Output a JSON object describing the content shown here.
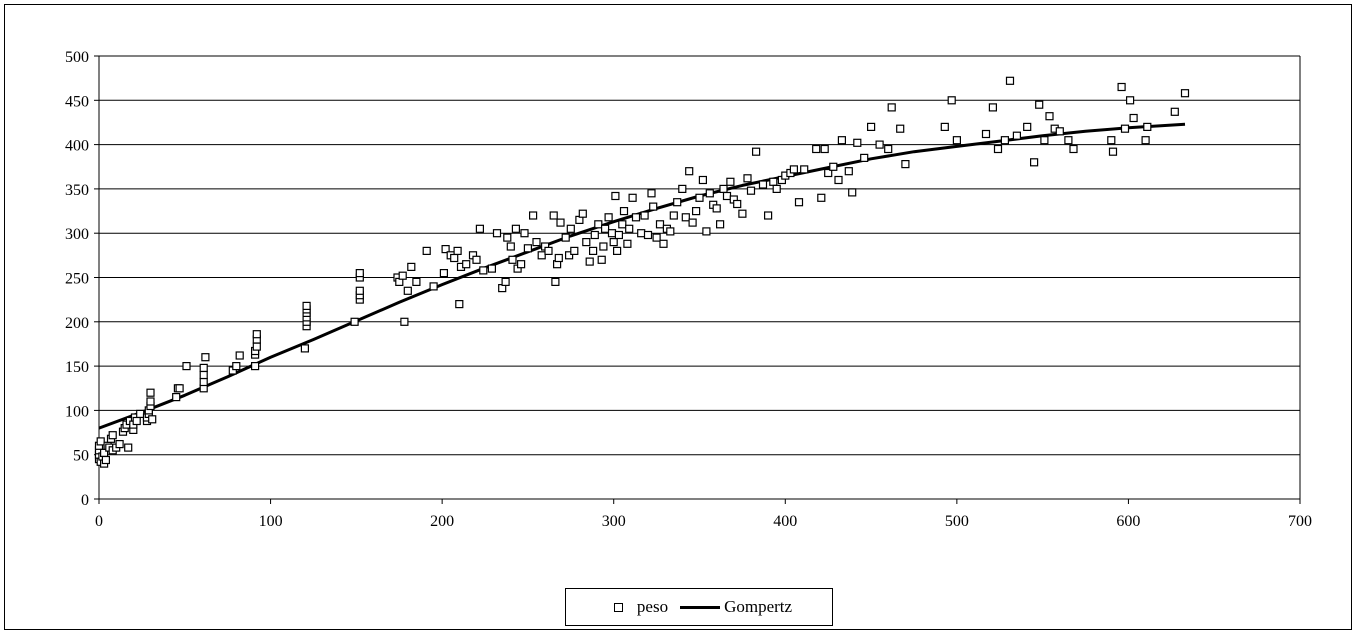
{
  "chart_data": {
    "type": "scatter",
    "title": "",
    "xlabel": "",
    "ylabel": "",
    "xlim": [
      0,
      700
    ],
    "ylim": [
      0,
      500
    ],
    "x_ticks": [
      0,
      100,
      200,
      300,
      400,
      500,
      600,
      700
    ],
    "y_ticks": [
      0,
      50,
      100,
      150,
      200,
      250,
      300,
      350,
      400,
      450,
      500
    ],
    "grid": "horizontal",
    "legend_position": "bottom",
    "series": [
      {
        "name": "peso",
        "marker": "open-square",
        "color": "#000000",
        "points": [
          [
            0,
            45
          ],
          [
            0,
            50
          ],
          [
            0,
            55
          ],
          [
            0,
            60
          ],
          [
            1,
            42
          ],
          [
            1,
            65
          ],
          [
            2,
            48
          ],
          [
            3,
            40
          ],
          [
            3,
            52
          ],
          [
            4,
            44
          ],
          [
            5,
            60
          ],
          [
            6,
            58
          ],
          [
            7,
            68
          ],
          [
            8,
            72
          ],
          [
            8,
            55
          ],
          [
            10,
            58
          ],
          [
            12,
            62
          ],
          [
            14,
            76
          ],
          [
            15,
            80
          ],
          [
            16,
            84
          ],
          [
            17,
            58
          ],
          [
            18,
            88
          ],
          [
            20,
            78
          ],
          [
            20,
            84
          ],
          [
            21,
            92
          ],
          [
            22,
            88
          ],
          [
            24,
            96
          ],
          [
            28,
            88
          ],
          [
            28,
            92
          ],
          [
            29,
            96
          ],
          [
            29,
            100
          ],
          [
            30,
            105
          ],
          [
            30,
            110
          ],
          [
            30,
            120
          ],
          [
            31,
            90
          ],
          [
            45,
            115
          ],
          [
            46,
            125
          ],
          [
            47,
            125
          ],
          [
            51,
            150
          ],
          [
            61,
            125
          ],
          [
            61,
            132
          ],
          [
            61,
            140
          ],
          [
            61,
            148
          ],
          [
            62,
            160
          ],
          [
            78,
            145
          ],
          [
            80,
            150
          ],
          [
            82,
            162
          ],
          [
            91,
            150
          ],
          [
            91,
            163
          ],
          [
            91,
            167
          ],
          [
            92,
            172
          ],
          [
            92,
            180
          ],
          [
            92,
            186
          ],
          [
            120,
            170
          ],
          [
            121,
            195
          ],
          [
            121,
            200
          ],
          [
            121,
            205
          ],
          [
            121,
            210
          ],
          [
            121,
            214
          ],
          [
            121,
            218
          ],
          [
            149,
            200
          ],
          [
            152,
            225
          ],
          [
            152,
            230
          ],
          [
            152,
            235
          ],
          [
            152,
            250
          ],
          [
            152,
            255
          ],
          [
            174,
            250
          ],
          [
            175,
            245
          ],
          [
            177,
            252
          ],
          [
            178,
            200
          ],
          [
            180,
            235
          ],
          [
            182,
            262
          ],
          [
            185,
            245
          ],
          [
            191,
            280
          ],
          [
            195,
            240
          ],
          [
            201,
            255
          ],
          [
            202,
            282
          ],
          [
            205,
            275
          ],
          [
            207,
            272
          ],
          [
            209,
            280
          ],
          [
            210,
            220
          ],
          [
            211,
            262
          ],
          [
            214,
            265
          ],
          [
            218,
            275
          ],
          [
            220,
            270
          ],
          [
            222,
            305
          ],
          [
            224,
            258
          ],
          [
            229,
            260
          ],
          [
            232,
            300
          ],
          [
            235,
            238
          ],
          [
            237,
            245
          ],
          [
            238,
            295
          ],
          [
            240,
            285
          ],
          [
            241,
            270
          ],
          [
            243,
            305
          ],
          [
            244,
            260
          ],
          [
            246,
            265
          ],
          [
            248,
            300
          ],
          [
            250,
            283
          ],
          [
            253,
            320
          ],
          [
            255,
            290
          ],
          [
            258,
            275
          ],
          [
            260,
            285
          ],
          [
            262,
            280
          ],
          [
            265,
            320
          ],
          [
            266,
            245
          ],
          [
            267,
            265
          ],
          [
            268,
            272
          ],
          [
            269,
            312
          ],
          [
            272,
            295
          ],
          [
            274,
            275
          ],
          [
            275,
            305
          ],
          [
            277,
            280
          ],
          [
            280,
            315
          ],
          [
            282,
            322
          ],
          [
            284,
            290
          ],
          [
            286,
            268
          ],
          [
            288,
            280
          ],
          [
            289,
            298
          ],
          [
            291,
            310
          ],
          [
            293,
            270
          ],
          [
            294,
            285
          ],
          [
            295,
            305
          ],
          [
            297,
            318
          ],
          [
            299,
            300
          ],
          [
            300,
            290
          ],
          [
            301,
            342
          ],
          [
            302,
            280
          ],
          [
            303,
            298
          ],
          [
            305,
            310
          ],
          [
            306,
            325
          ],
          [
            308,
            288
          ],
          [
            309,
            305
          ],
          [
            311,
            340
          ],
          [
            313,
            318
          ],
          [
            316,
            300
          ],
          [
            318,
            320
          ],
          [
            320,
            298
          ],
          [
            322,
            345
          ],
          [
            323,
            330
          ],
          [
            325,
            295
          ],
          [
            327,
            310
          ],
          [
            329,
            288
          ],
          [
            331,
            305
          ],
          [
            333,
            302
          ],
          [
            335,
            320
          ],
          [
            337,
            335
          ],
          [
            340,
            350
          ],
          [
            342,
            318
          ],
          [
            344,
            370
          ],
          [
            346,
            312
          ],
          [
            348,
            325
          ],
          [
            350,
            340
          ],
          [
            352,
            360
          ],
          [
            354,
            302
          ],
          [
            356,
            345
          ],
          [
            358,
            332
          ],
          [
            360,
            328
          ],
          [
            362,
            310
          ],
          [
            364,
            350
          ],
          [
            366,
            342
          ],
          [
            368,
            358
          ],
          [
            370,
            338
          ],
          [
            372,
            333
          ],
          [
            375,
            322
          ],
          [
            378,
            362
          ],
          [
            380,
            348
          ],
          [
            383,
            392
          ],
          [
            387,
            355
          ],
          [
            390,
            320
          ],
          [
            393,
            358
          ],
          [
            395,
            350
          ],
          [
            398,
            360
          ],
          [
            400,
            365
          ],
          [
            403,
            368
          ],
          [
            405,
            372
          ],
          [
            408,
            335
          ],
          [
            411,
            372
          ],
          [
            418,
            395
          ],
          [
            421,
            340
          ],
          [
            423,
            395
          ],
          [
            425,
            368
          ],
          [
            428,
            375
          ],
          [
            431,
            360
          ],
          [
            433,
            405
          ],
          [
            437,
            370
          ],
          [
            439,
            346
          ],
          [
            442,
            402
          ],
          [
            446,
            385
          ],
          [
            450,
            420
          ],
          [
            455,
            400
          ],
          [
            460,
            395
          ],
          [
            462,
            442
          ],
          [
            467,
            418
          ],
          [
            470,
            378
          ],
          [
            493,
            420
          ],
          [
            497,
            450
          ],
          [
            500,
            405
          ],
          [
            517,
            412
          ],
          [
            521,
            442
          ],
          [
            524,
            395
          ],
          [
            528,
            405
          ],
          [
            531,
            472
          ],
          [
            535,
            410
          ],
          [
            541,
            420
          ],
          [
            545,
            380
          ],
          [
            548,
            445
          ],
          [
            551,
            405
          ],
          [
            554,
            432
          ],
          [
            557,
            418
          ],
          [
            560,
            415
          ],
          [
            565,
            405
          ],
          [
            568,
            395
          ],
          [
            590,
            405
          ],
          [
            591,
            392
          ],
          [
            596,
            465
          ],
          [
            598,
            418
          ],
          [
            601,
            450
          ],
          [
            603,
            430
          ],
          [
            610,
            405
          ],
          [
            611,
            420
          ],
          [
            627,
            437
          ],
          [
            633,
            458
          ]
        ]
      },
      {
        "name": "Gompertz",
        "marker": "line",
        "color": "#000000",
        "points": [
          [
            0,
            80
          ],
          [
            25,
            98
          ],
          [
            50,
            117
          ],
          [
            75,
            138
          ],
          [
            100,
            160
          ],
          [
            125,
            180
          ],
          [
            150,
            201
          ],
          [
            175,
            222
          ],
          [
            200,
            242
          ],
          [
            225,
            261
          ],
          [
            250,
            279
          ],
          [
            275,
            297
          ],
          [
            300,
            313
          ],
          [
            325,
            328
          ],
          [
            350,
            342
          ],
          [
            375,
            354
          ],
          [
            400,
            364
          ],
          [
            425,
            374
          ],
          [
            450,
            384
          ],
          [
            475,
            392
          ],
          [
            500,
            398
          ],
          [
            525,
            404
          ],
          [
            550,
            410
          ],
          [
            575,
            415
          ],
          [
            600,
            419
          ],
          [
            633,
            423
          ]
        ]
      }
    ]
  },
  "legend": {
    "peso_label": "peso",
    "gompertz_label": "Gompertz"
  }
}
